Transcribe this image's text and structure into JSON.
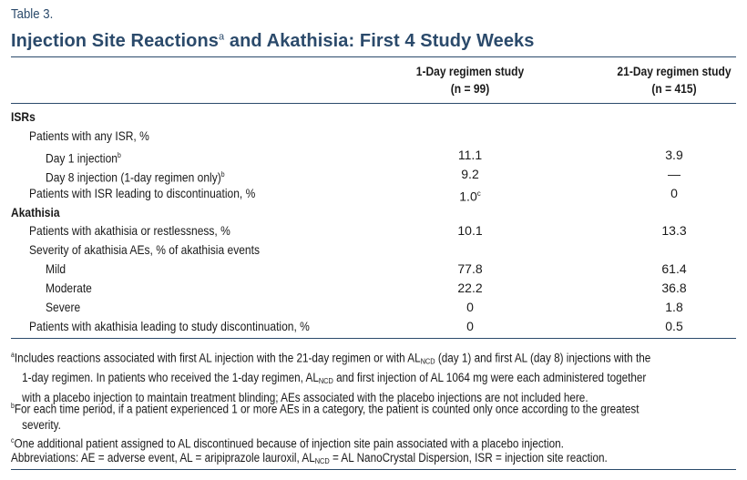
{
  "table_label": "Table 3.",
  "title": {
    "main": "Injection Site Reactions",
    "sup": "a",
    "rest": " and Akathisia: First 4 Study Weeks"
  },
  "columns": [
    {
      "line1": "1-Day regimen study",
      "line2": "(n = 99)"
    },
    {
      "line1": "21-Day regimen study",
      "line2": "(n = 415)"
    }
  ],
  "rows": [
    {
      "label": "ISRs",
      "section": true
    },
    {
      "label": "Patients with any ISR, %",
      "indent": 1
    },
    {
      "label": "Day 1 injection",
      "sup": "b",
      "indent": 2,
      "v1": "11.1",
      "v2": "3.9"
    },
    {
      "label": "Day 8 injection (1-day regimen only)",
      "sup": "b",
      "indent": 2,
      "v1": "9.2",
      "v2": "—"
    },
    {
      "label": "Patients with ISR leading to discontinuation, %",
      "indent": 1,
      "v1": "1.0",
      "v1_sup": "c",
      "v2": "0"
    },
    {
      "label": "Akathisia",
      "section": true
    },
    {
      "label": "Patients with akathisia or restlessness, %",
      "indent": 1,
      "v1": "10.1",
      "v2": "13.3"
    },
    {
      "label": "Severity of akathisia AEs, % of akathisia events",
      "indent": 1
    },
    {
      "label": "Mild",
      "indent": 2,
      "v1": "77.8",
      "v2": "61.4"
    },
    {
      "label": "Moderate",
      "indent": 2,
      "v1": "22.2",
      "v2": "36.8"
    },
    {
      "label": "Severe",
      "indent": 2,
      "v1": "0",
      "v2": "1.8"
    },
    {
      "label": "Patients with akathisia leading to study discontinuation, %",
      "indent": 1,
      "v1": "0",
      "v2": "0.5"
    }
  ],
  "footnotes": {
    "a": [
      [
        {
          "t": "a",
          "sup": true
        },
        {
          "t": "Includes reactions associated with first AL injection with the 21-day regimen or with AL"
        },
        {
          "t": "NCD",
          "sub": true
        },
        {
          "t": " (day 1) and first AL (day 8) injections with the"
        }
      ],
      [
        {
          "t": "1-day regimen. In patients who received the 1-day regimen, AL"
        },
        {
          "t": "NCD",
          "sub": true
        },
        {
          "t": " and first injection of AL 1064 mg were each administered together"
        }
      ],
      [
        {
          "t": "with a placebo injection to maintain treatment blinding; AEs associated with the placebo injections are not included here."
        }
      ]
    ],
    "b": [
      [
        {
          "t": "b",
          "sup": true
        },
        {
          "t": "For each time period, if a patient experienced 1 or more AEs in a category, the patient is counted only once according to the greatest"
        }
      ],
      [
        {
          "t": "severity."
        }
      ]
    ],
    "c": [
      [
        {
          "t": "c",
          "sup": true
        },
        {
          "t": "One additional patient assigned to AL discontinued because of injection site pain associated with a placebo injection."
        }
      ]
    ],
    "abbr": [
      [
        {
          "t": "Abbreviations: AE = adverse event, AL = aripiprazole lauroxil, AL"
        },
        {
          "t": "NCD",
          "sub": true
        },
        {
          "t": " = AL NanoCrystal Dispersion, ISR = injection site reaction."
        }
      ]
    ]
  }
}
